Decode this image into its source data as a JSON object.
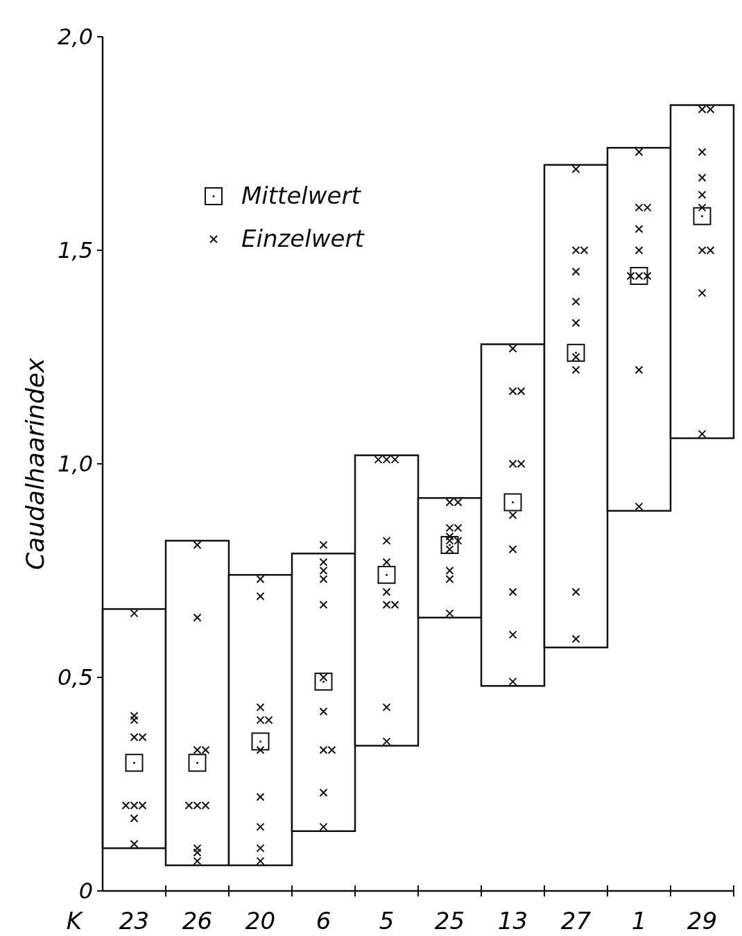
{
  "chart_data": {
    "type": "bar",
    "ylabel": "Caudalhaarindex",
    "xlabel": "K",
    "categories": [
      "23",
      "26",
      "20",
      "6",
      "5",
      "25",
      "13",
      "27",
      "1",
      "29"
    ],
    "ylim": [
      0,
      2
    ],
    "yticks": [
      {
        "value": 0,
        "label": "0"
      },
      {
        "value": 0.5,
        "label": "0,5"
      },
      {
        "value": 1,
        "label": "1,0"
      },
      {
        "value": 1.5,
        "label": "1,5"
      },
      {
        "value": 2,
        "label": "2,0"
      }
    ],
    "grid": false,
    "legend": "top left",
    "series": [
      {
        "color": "#ffffff",
        "base": [
          0.1,
          0.06,
          0.06,
          0.14,
          0.34,
          0.64,
          0.48,
          0.57,
          0.89,
          1.06
        ],
        "values": [
          0.56,
          0.76,
          0.68,
          0.65,
          0.68,
          0.28,
          0.8,
          1.13,
          0.85,
          0.78
        ]
      },
      {
        "type": "scatter",
        "name": "Mittelwert",
        "color": "#111111",
        "marker": "square",
        "x": [
          "23",
          "26",
          "20",
          "6",
          "5",
          "25",
          "13",
          "27",
          "1",
          "29"
        ],
        "values": [
          0.3,
          0.3,
          0.35,
          0.49,
          0.74,
          0.81,
          0.91,
          1.26,
          1.44,
          1.58
        ]
      },
      {
        "type": "scatter",
        "name": "Einzelwert",
        "color": "#111111",
        "marker": "cross",
        "x": [
          "23",
          "23",
          "23",
          "23",
          "23",
          "23",
          "23",
          "23",
          "23",
          "23",
          "26",
          "26",
          "26",
          "26",
          "26",
          "26",
          "26",
          "26",
          "26",
          "26",
          "20",
          "20",
          "20",
          "20",
          "20",
          "20",
          "20",
          "20",
          "20",
          "20",
          "6",
          "6",
          "6",
          "6",
          "6",
          "6",
          "6",
          "6",
          "6",
          "6",
          "6",
          "5",
          "5",
          "5",
          "5",
          "5",
          "5",
          "5",
          "5",
          "5",
          "5",
          "25",
          "25",
          "25",
          "25",
          "25",
          "25",
          "25",
          "25",
          "25",
          "25",
          "25",
          "13",
          "13",
          "13",
          "13",
          "13",
          "13",
          "13",
          "13",
          "13",
          "13",
          "27",
          "27",
          "27",
          "27",
          "27",
          "27",
          "27",
          "27",
          "27",
          "27",
          "1",
          "1",
          "1",
          "1",
          "1",
          "1",
          "1",
          "1",
          "1",
          "1",
          "29",
          "29",
          "29",
          "29",
          "29",
          "29",
          "29",
          "29",
          "29",
          "29"
        ],
        "values": [
          0.65,
          0.4,
          0.41,
          0.36,
          0.36,
          0.2,
          0.2,
          0.2,
          0.17,
          0.11,
          0.81,
          0.64,
          0.33,
          0.33,
          0.2,
          0.2,
          0.2,
          0.1,
          0.09,
          0.07,
          0.73,
          0.69,
          0.43,
          0.4,
          0.4,
          0.33,
          0.22,
          0.15,
          0.1,
          0.07,
          0.77,
          0.75,
          0.73,
          0.81,
          0.67,
          0.5,
          0.42,
          0.33,
          0.33,
          0.23,
          0.15,
          1.01,
          1.01,
          1.01,
          0.82,
          0.77,
          0.7,
          0.67,
          0.67,
          0.43,
          0.35,
          0.91,
          0.91,
          0.85,
          0.85,
          0.82,
          0.82,
          0.83,
          0.8,
          0.75,
          0.73,
          0.65,
          1.27,
          1.17,
          1.17,
          1.0,
          1.0,
          0.88,
          0.8,
          0.7,
          0.6,
          0.49,
          1.69,
          1.5,
          1.5,
          1.45,
          1.38,
          1.33,
          1.25,
          1.22,
          0.7,
          0.59,
          1.73,
          1.6,
          1.6,
          1.55,
          1.5,
          1.44,
          1.44,
          1.44,
          1.22,
          0.9,
          1.83,
          1.83,
          1.73,
          1.67,
          1.63,
          1.6,
          1.5,
          1.5,
          1.4,
          1.07
        ]
      }
    ]
  }
}
